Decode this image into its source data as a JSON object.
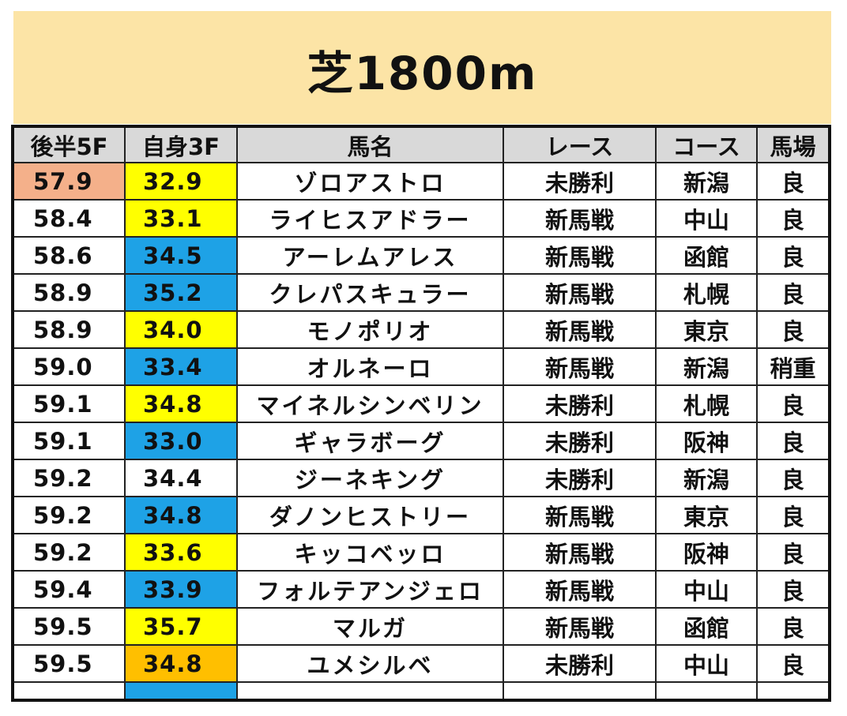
{
  "title": "芝1800m",
  "headers": [
    "後半5F",
    "自身3F",
    "馬名",
    "レース",
    "コース",
    "馬場"
  ],
  "colors": {
    "salmon": "#f4b08a",
    "yellow": "#ffff00",
    "blue": "#1ea2e6",
    "orange": "#ffbf00",
    "banner": "#fce4a6",
    "header": "#d9d9d9"
  },
  "rows": [
    {
      "late5f": "57.9",
      "late5f_color": "salmon",
      "own3f": "32.9",
      "own3f_color": "yellow",
      "name": "ゾロアストロ",
      "race": "未勝利",
      "course": "新潟",
      "going": "良"
    },
    {
      "late5f": "58.4",
      "late5f_color": "none",
      "own3f": "33.1",
      "own3f_color": "yellow",
      "name": "ライヒスアドラー",
      "race": "新馬戦",
      "course": "中山",
      "going": "良"
    },
    {
      "late5f": "58.6",
      "late5f_color": "none",
      "own3f": "34.5",
      "own3f_color": "blue",
      "name": "アーレムアレス",
      "race": "新馬戦",
      "course": "函館",
      "going": "良"
    },
    {
      "late5f": "58.9",
      "late5f_color": "none",
      "own3f": "35.2",
      "own3f_color": "blue",
      "name": "クレパスキュラー",
      "race": "新馬戦",
      "course": "札幌",
      "going": "良"
    },
    {
      "late5f": "58.9",
      "late5f_color": "none",
      "own3f": "34.0",
      "own3f_color": "yellow",
      "name": "モノポリオ",
      "race": "新馬戦",
      "course": "東京",
      "going": "良"
    },
    {
      "late5f": "59.0",
      "late5f_color": "none",
      "own3f": "33.4",
      "own3f_color": "blue",
      "name": "オルネーロ",
      "race": "新馬戦",
      "course": "新潟",
      "going": "稍重"
    },
    {
      "late5f": "59.1",
      "late5f_color": "none",
      "own3f": "34.8",
      "own3f_color": "yellow",
      "name": "マイネルシンベリン",
      "race": "未勝利",
      "course": "札幌",
      "going": "良"
    },
    {
      "late5f": "59.1",
      "late5f_color": "none",
      "own3f": "33.0",
      "own3f_color": "blue",
      "name": "ギャラボーグ",
      "race": "未勝利",
      "course": "阪神",
      "going": "良"
    },
    {
      "late5f": "59.2",
      "late5f_color": "none",
      "own3f": "34.4",
      "own3f_color": "none",
      "name": "ジーネキング",
      "race": "未勝利",
      "course": "新潟",
      "going": "良"
    },
    {
      "late5f": "59.2",
      "late5f_color": "none",
      "own3f": "34.8",
      "own3f_color": "blue",
      "name": "ダノンヒストリー",
      "race": "新馬戦",
      "course": "東京",
      "going": "良"
    },
    {
      "late5f": "59.2",
      "late5f_color": "none",
      "own3f": "33.6",
      "own3f_color": "yellow",
      "name": "キッコベッロ",
      "race": "新馬戦",
      "course": "阪神",
      "going": "良"
    },
    {
      "late5f": "59.4",
      "late5f_color": "none",
      "own3f": "33.9",
      "own3f_color": "blue",
      "name": "フォルテアンジェロ",
      "race": "新馬戦",
      "course": "中山",
      "going": "良"
    },
    {
      "late5f": "59.5",
      "late5f_color": "none",
      "own3f": "35.7",
      "own3f_color": "yellow",
      "name": "マルガ",
      "race": "新馬戦",
      "course": "函館",
      "going": "良"
    },
    {
      "late5f": "59.5",
      "late5f_color": "none",
      "own3f": "34.8",
      "own3f_color": "orange",
      "name": "ユメシルベ",
      "race": "未勝利",
      "course": "中山",
      "going": "良"
    }
  ],
  "cut_row_colors": {
    "late5f": "none",
    "own3f": "blue"
  }
}
